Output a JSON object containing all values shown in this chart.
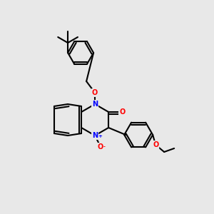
{
  "background_color": "#e8e8e8",
  "bond_color": "#000000",
  "bond_width": 1.5,
  "atom_colors": {
    "N": "#0000ff",
    "O": "#ff0000",
    "C": "#000000"
  },
  "figsize": [
    3.0,
    3.0
  ],
  "dpi": 100
}
